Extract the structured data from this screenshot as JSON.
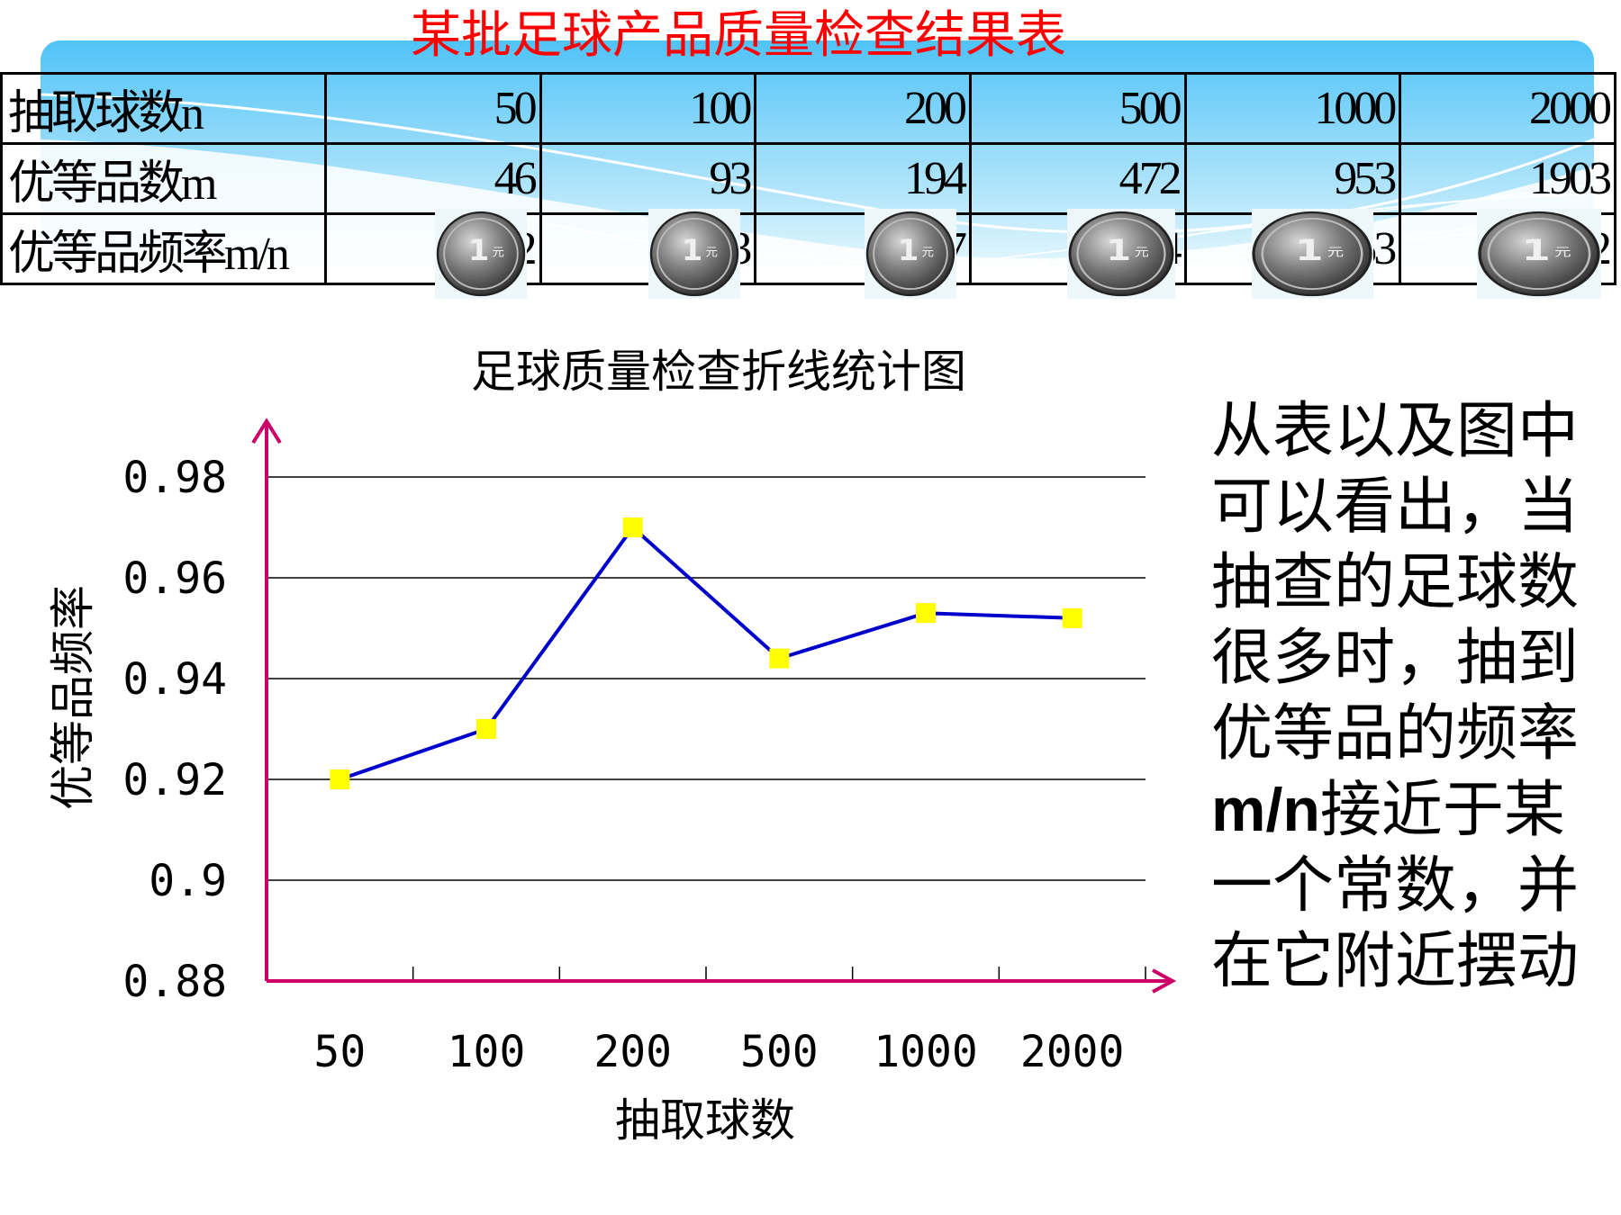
{
  "page": {
    "title": "某批足球产品质量检查结果表",
    "note_prefix": "从表以及图中可以看出，当抽查的足球数很多时，抽到优等品的频率",
    "note_bold": "m/n",
    "note_suffix": "接近于某一个常数，并在它附近摆动"
  },
  "table": {
    "rows": [
      {
        "label": "抽取球数n",
        "values": [
          "50",
          "100",
          "200",
          "500",
          "1000",
          "2000"
        ]
      },
      {
        "label": "优等品数m",
        "values": [
          "46",
          "93",
          "194",
          "472",
          "953",
          "1903"
        ]
      },
      {
        "label": "优等品频率m/n",
        "values": [
          "0.92",
          "0.93",
          "0.97",
          "0.944",
          "0.953",
          "0.952"
        ],
        "covered_by": "coin-icon"
      }
    ]
  },
  "colors": {
    "title": "#ff0000",
    "line": "#0000cc",
    "marker": "#ffff00",
    "axis": "#cc0066",
    "grid": "#000000",
    "banner_light": "#e6f6fd",
    "banner_dark": "#0aa0e0"
  },
  "chart_data": {
    "type": "line",
    "title": "足球质量检查折线统计图",
    "xlabel": "抽取球数",
    "ylabel": "优等品频率",
    "categories": [
      "50",
      "100",
      "200",
      "500",
      "1000",
      "2000"
    ],
    "values": [
      0.92,
      0.93,
      0.97,
      0.944,
      0.953,
      0.952
    ],
    "ylim": [
      0.88,
      0.98
    ],
    "yticks": [
      "0.88",
      "0.9",
      "0.92",
      "0.94",
      "0.96",
      "0.98"
    ],
    "grid": true,
    "legend": "none",
    "marker": "square"
  }
}
